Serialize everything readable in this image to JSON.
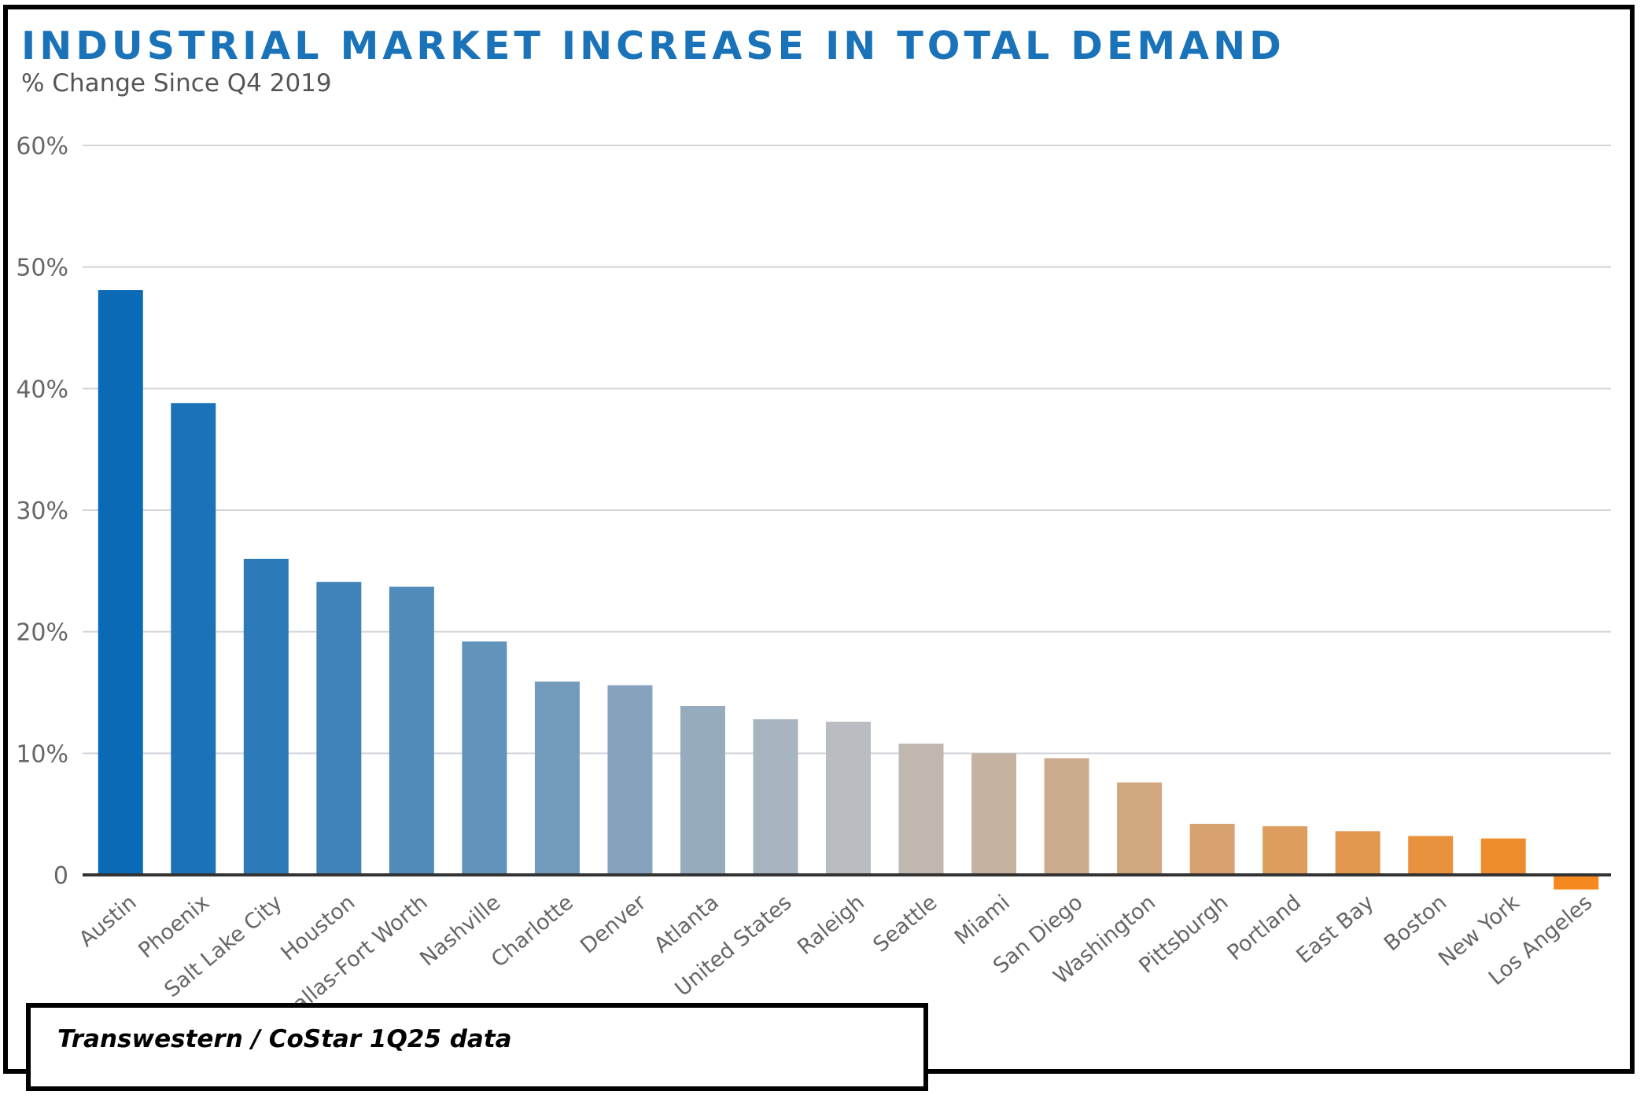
{
  "colors": {
    "title": "#1a73b8",
    "subtitle": "#555555",
    "grid": "#d0d5da",
    "axis": "#333333",
    "tick_text": "#666666",
    "bar_start": "#0a6ab6",
    "bar_mid": "#b9bcc0",
    "bar_end": "#f5881e"
  },
  "chart_data": {
    "type": "bar",
    "title": "INDUSTRIAL MARKET INCREASE IN TOTAL DEMAND",
    "subtitle": "% Change Since Q4 2019",
    "xlabel": "",
    "ylabel": "",
    "ylim": [
      0,
      60
    ],
    "yticks": [
      0,
      10,
      20,
      30,
      40,
      50,
      60
    ],
    "ytick_labels": [
      "0",
      "10%",
      "20%",
      "30%",
      "40%",
      "50%",
      "60%"
    ],
    "grid": true,
    "legend": "none",
    "categories": [
      "Austin",
      "Phoenix",
      "Salt Lake City",
      "Houston",
      "Dallas-Fort Worth",
      "Nashville",
      "Charlotte",
      "Denver",
      "Atlanta",
      "United States",
      "Raleigh",
      "Seattle",
      "Miami",
      "San Diego",
      "Washington",
      "Pittsburgh",
      "Portland",
      "East Bay",
      "Boston",
      "New York",
      "Los Angeles"
    ],
    "values": [
      48.1,
      38.8,
      26.0,
      24.1,
      23.7,
      19.2,
      15.9,
      15.6,
      13.9,
      12.8,
      12.6,
      10.8,
      10.0,
      9.6,
      7.6,
      4.2,
      4.0,
      3.6,
      3.2,
      3.0,
      -1.2
    ]
  },
  "source": "Transwestern / CoStar 1Q25 data"
}
